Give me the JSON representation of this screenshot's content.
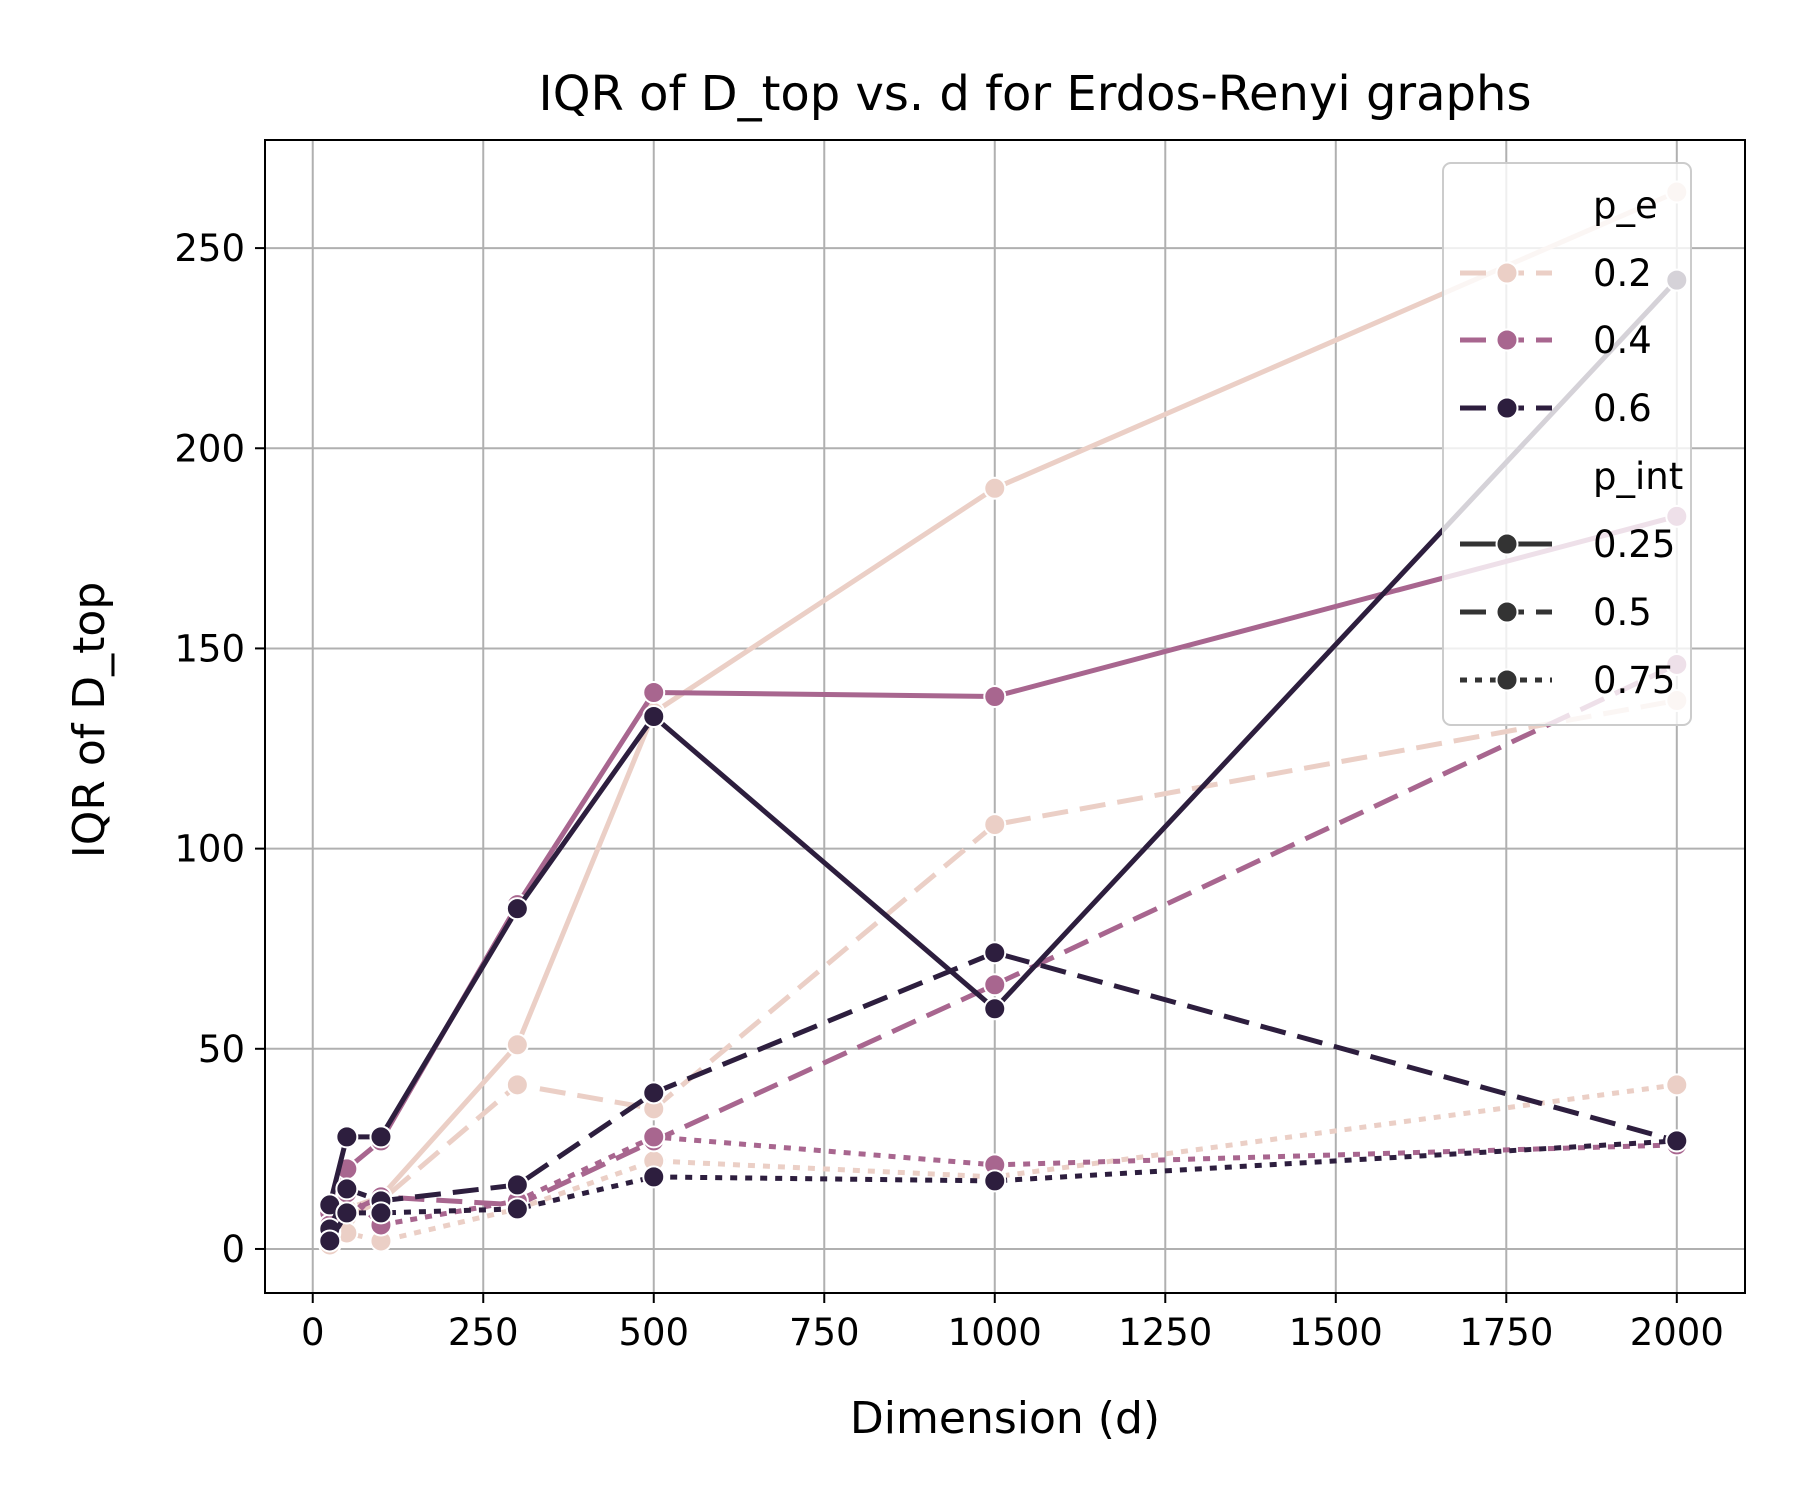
{
  "chart_data": {
    "type": "line",
    "title": "IQR of D_top vs. d for Erdos-Renyi graphs",
    "xlabel": "Dimension (d)",
    "ylabel": "IQR of D_top",
    "xlim": [
      -70,
      2100
    ],
    "ylim": [
      -11,
      277
    ],
    "xticks": [
      0,
      250,
      500,
      750,
      1000,
      1250,
      1500,
      1750,
      2000
    ],
    "yticks": [
      0,
      50,
      100,
      150,
      200,
      250
    ],
    "grid": true,
    "legend_position": "top-right",
    "legend": {
      "hue_title": "p_e",
      "hue_entries": [
        {
          "label": "0.2",
          "color": "#ebcfc6"
        },
        {
          "label": "0.4",
          "color": "#a8668f"
        },
        {
          "label": "0.6",
          "color": "#2d1e3e"
        }
      ],
      "style_title": "p_int",
      "style_entries": [
        {
          "label": "0.25",
          "dash": "solid"
        },
        {
          "label": "0.5",
          "dash": "dashed"
        },
        {
          "label": "0.75",
          "dash": "dotted"
        }
      ],
      "style_color": "#333333"
    },
    "series": [
      {
        "p_e": "0.2",
        "p_int": "0.25",
        "color": "#ebcfc6",
        "dash": "solid",
        "x": [
          25,
          50,
          100,
          300,
          500,
          1000,
          2000
        ],
        "y": [
          4,
          10,
          13,
          51,
          134,
          190,
          264
        ]
      },
      {
        "p_e": "0.2",
        "p_int": "0.5",
        "color": "#ebcfc6",
        "dash": "dashed",
        "x": [
          25,
          50,
          100,
          300,
          500,
          1000,
          2000
        ],
        "y": [
          3,
          8,
          12,
          41,
          35,
          106,
          137
        ]
      },
      {
        "p_e": "0.2",
        "p_int": "0.75",
        "color": "#ebcfc6",
        "dash": "dotted",
        "x": [
          25,
          50,
          100,
          300,
          500,
          1000,
          2000
        ],
        "y": [
          1,
          4,
          2,
          10,
          22,
          18,
          41
        ]
      },
      {
        "p_e": "0.4",
        "p_int": "0.25",
        "color": "#a8668f",
        "dash": "solid",
        "x": [
          25,
          50,
          100,
          300,
          500,
          1000,
          2000
        ],
        "y": [
          9,
          20,
          27,
          86,
          139,
          138,
          183
        ]
      },
      {
        "p_e": "0.4",
        "p_int": "0.5",
        "color": "#a8668f",
        "dash": "dashed",
        "x": [
          25,
          50,
          100,
          300,
          500,
          1000,
          2000
        ],
        "y": [
          6,
          9,
          13,
          11,
          27,
          66,
          146
        ]
      },
      {
        "p_e": "0.4",
        "p_int": "0.75",
        "color": "#a8668f",
        "dash": "dotted",
        "x": [
          25,
          50,
          100,
          300,
          500,
          1000,
          2000
        ],
        "y": [
          4,
          14,
          6,
          12,
          28,
          21,
          26
        ]
      },
      {
        "p_e": "0.6",
        "p_int": "0.25",
        "color": "#2d1e3e",
        "dash": "solid",
        "x": [
          25,
          50,
          100,
          300,
          500,
          1000,
          2000
        ],
        "y": [
          11,
          28,
          28,
          85,
          133,
          60,
          242
        ]
      },
      {
        "p_e": "0.6",
        "p_int": "0.5",
        "color": "#2d1e3e",
        "dash": "dashed",
        "x": [
          25,
          50,
          100,
          300,
          500,
          1000,
          2000
        ],
        "y": [
          5,
          15,
          12,
          16,
          39,
          74,
          27
        ]
      },
      {
        "p_e": "0.6",
        "p_int": "0.75",
        "color": "#2d1e3e",
        "dash": "dotted",
        "x": [
          25,
          50,
          100,
          300,
          500,
          1000,
          2000
        ],
        "y": [
          2,
          9,
          9,
          10,
          18,
          17,
          27
        ]
      }
    ]
  }
}
